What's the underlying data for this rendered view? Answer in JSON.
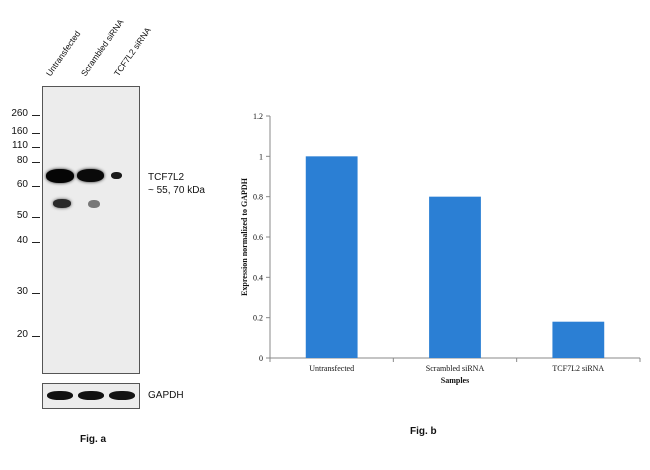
{
  "western_blot": {
    "lanes": [
      "Untransfected",
      "Scrambled siRNA",
      "TCF7L2 siRNA"
    ],
    "mw_markers": [
      "260",
      "160",
      "110",
      "80",
      "60",
      "50",
      "40",
      "30",
      "20"
    ],
    "target_label": "TCF7L2",
    "target_size": "~ 55, 70 kDa",
    "loading_control": "GAPDH",
    "figure_label": "Fig. a"
  },
  "bar_chart": {
    "figure_label": "Fig. b",
    "bar_color": "#2b7fd4"
  },
  "chart_data": {
    "type": "bar",
    "categories": [
      "Untransfected",
      "Scrambled siRNA",
      "TCF7L2 siRNA"
    ],
    "values": [
      1.0,
      0.8,
      0.18
    ],
    "ylabel": "Expression normalized to GAPDH",
    "xlabel": "Samples",
    "ylim": [
      0,
      1.2
    ],
    "yticks": [
      "0",
      "0.2",
      "0.4",
      "0.6",
      "0.8",
      "1",
      "1.2"
    ],
    "grid": false,
    "legend": "none"
  }
}
